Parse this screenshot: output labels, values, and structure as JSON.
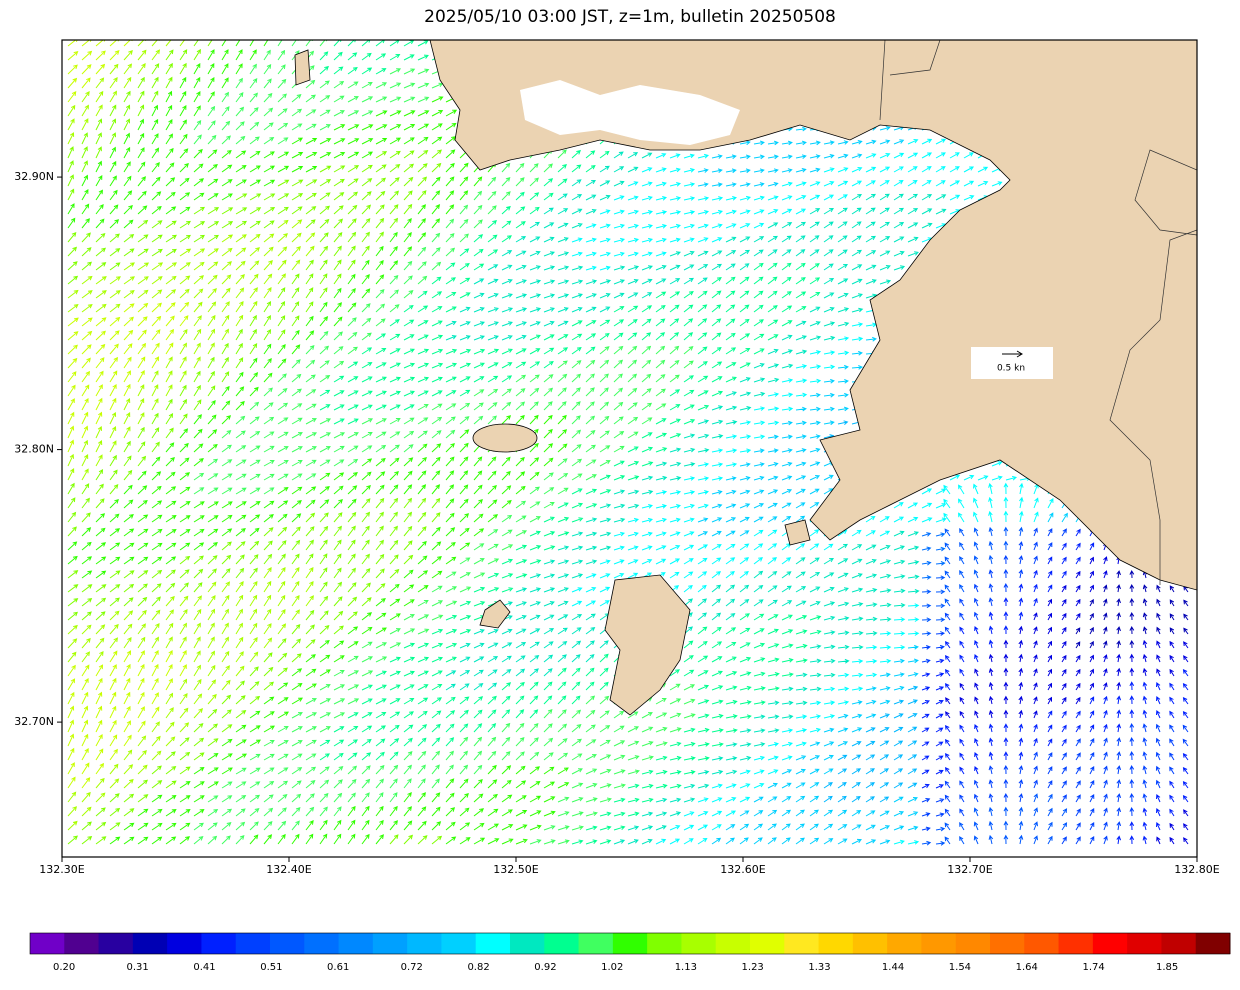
{
  "title": "2025/05/10 03:00 JST, z=1m, bulletin 20250508",
  "map": {
    "xlim": [
      132.3,
      132.8
    ],
    "ylim": [
      32.6505,
      32.9503
    ],
    "xticks": [
      {
        "value": 132.3,
        "label": "132.30E"
      },
      {
        "value": 132.4,
        "label": "132.40E"
      },
      {
        "value": 132.5,
        "label": "132.50E"
      },
      {
        "value": 132.6,
        "label": "132.60E"
      },
      {
        "value": 132.7,
        "label": "132.70E"
      },
      {
        "value": 132.8,
        "label": "132.80E"
      }
    ],
    "yticks": [
      {
        "value": 32.7,
        "label": "32.70N"
      },
      {
        "value": 32.8,
        "label": "32.80N"
      },
      {
        "value": 32.9,
        "label": "32.90N"
      }
    ],
    "scale_label": "0.5 kn"
  },
  "colorbar": {
    "clim": [
      0.149,
      1.944
    ],
    "colors": [
      "#7000c8",
      "#500090",
      "#2800a0",
      "#0000b4",
      "#0000e0",
      "#0020ff",
      "#0040ff",
      "#0058ff",
      "#0070ff",
      "#0088ff",
      "#00a0ff",
      "#00b8ff",
      "#00d0ff",
      "#00ffff",
      "#00e8c0",
      "#00ff90",
      "#40ff60",
      "#30ff00",
      "#80ff00",
      "#a8ff00",
      "#c8ff00",
      "#e0ff00",
      "#ffe820",
      "#ffd800",
      "#ffc000",
      "#ffa800",
      "#ff9800",
      "#ff8800",
      "#ff7000",
      "#ff5800",
      "#ff3000",
      "#ff0000",
      "#e00000",
      "#c00000",
      "#800000"
    ],
    "labels": [
      {
        "value": 0.2,
        "label": "0.20"
      },
      0.31,
      0.41,
      0.51,
      0.61,
      0.72,
      0.82,
      0.92,
      1.02,
      1.13,
      1.23,
      1.33,
      1.44,
      1.54,
      1.64,
      1.74,
      1.85
    ]
  }
}
